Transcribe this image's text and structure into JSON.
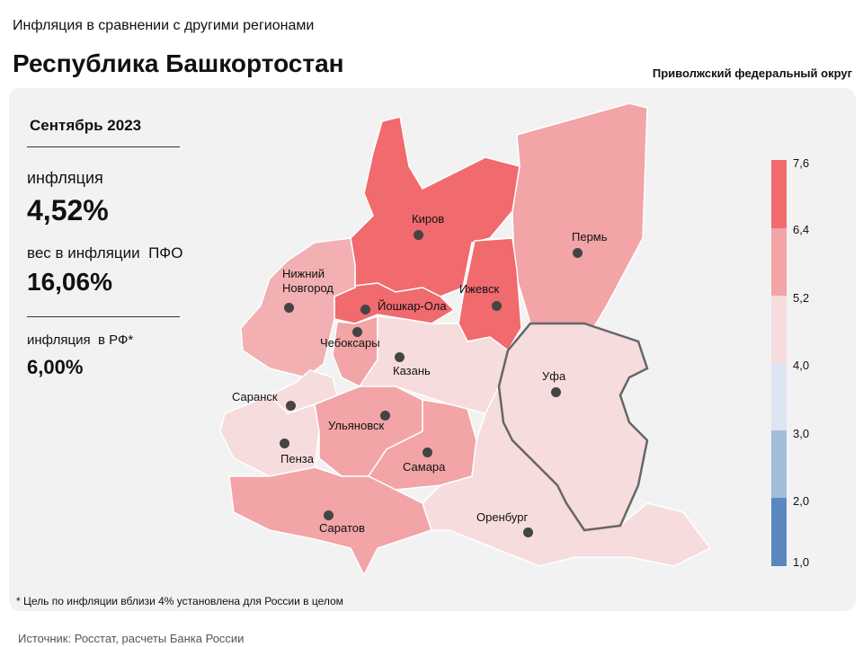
{
  "header": {
    "subtitle": "Инфляция в сравнении с другими регионами",
    "title": "Республика Башкортостан",
    "district": "Приволжский федеральный округ"
  },
  "panel": {
    "period": "Сентябрь 2023",
    "inflation_label": "инфляция",
    "inflation_value": "4,52%",
    "weight_label": "вес в инфляции  ПФО",
    "weight_value": "16,06%",
    "rf_label": "инфляция  в РФ*",
    "rf_value": "6,00%"
  },
  "cities": [
    "Киров",
    "Пермь",
    "Нижний Новгород",
    "Ижевск",
    "Йошкар-Ола",
    "Чебоксары",
    "Казань",
    "Уфа",
    "Саранск",
    "Ульяновск",
    "Пенза",
    "Самара",
    "Саратов",
    "Оренбург"
  ],
  "legend": {
    "ticks": [
      "7,6",
      "6,4",
      "5,2",
      "4,0",
      "3,0",
      "2,0",
      "1,0"
    ]
  },
  "footnote": "* Цель по инфляции вблизи 4% установлена для России в целом",
  "source": "Источник: Росстат, расчеты Банка России"
}
